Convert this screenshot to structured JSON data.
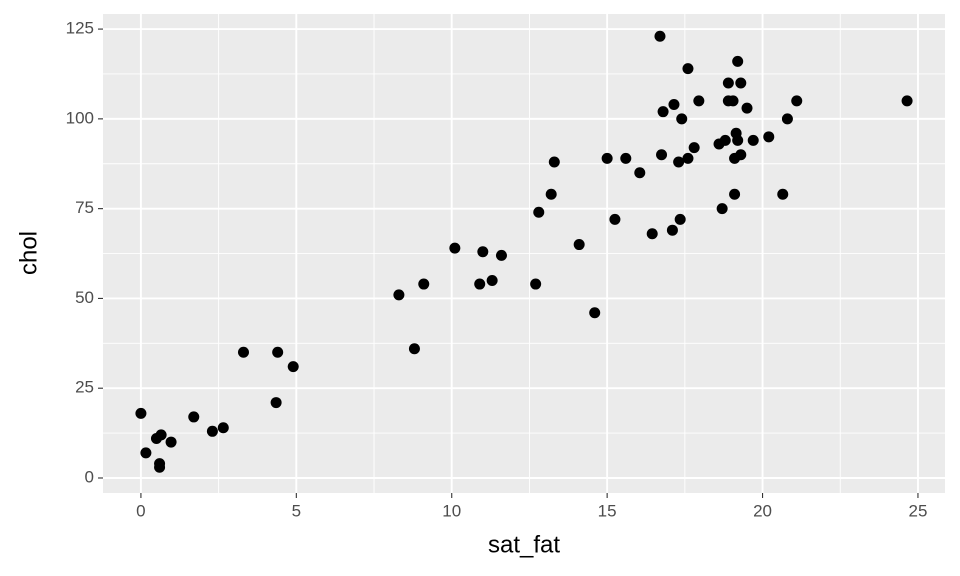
{
  "chart_data": {
    "type": "scatter",
    "x_label": "sat_fat",
    "y_label": "chol",
    "color": "#000000",
    "xlim": [
      -1.22,
      25.87
    ],
    "ylim": [
      -4.18,
      129.2
    ],
    "xticks": [
      0,
      5,
      10,
      15,
      20,
      25
    ],
    "yticks": [
      0,
      25,
      50,
      75,
      100,
      125
    ],
    "grid": true,
    "x": [
      0,
      0.16,
      0.5,
      0.65,
      0.6,
      0.6,
      0.97,
      1.7,
      2.3,
      2.65,
      3.3,
      4.4,
      4.35,
      4.9,
      8.3,
      8.8,
      9.1,
      10.1,
      10.9,
      11.0,
      11.3,
      11.6,
      12.7,
      12.8,
      13.2,
      13.3,
      14.1,
      14.6,
      15.0,
      15.25,
      15.6,
      16.05,
      16.45,
      16.7,
      16.75,
      16.8,
      17.1,
      17.15,
      17.3,
      17.35,
      17.4,
      17.6,
      17.6,
      17.8,
      17.95,
      18.6,
      18.7,
      18.8,
      18.9,
      18.9,
      19.05,
      19.1,
      19.1,
      19.15,
      19.2,
      19.2,
      19.3,
      19.3,
      19.5,
      19.7,
      20.2,
      20.65,
      20.8,
      21.1,
      24.65
    ],
    "values": [
      18,
      7,
      11,
      12,
      4,
      3,
      10,
      17,
      13,
      14,
      35,
      35,
      21,
      31,
      51,
      36,
      54,
      64,
      54,
      63,
      55,
      62,
      54,
      74,
      79,
      88,
      65,
      46,
      89,
      72,
      89,
      85,
      68,
      123,
      90,
      102,
      69,
      104,
      88,
      72,
      100,
      114,
      89,
      92,
      105,
      93,
      75,
      94,
      105,
      110,
      105,
      79,
      89,
      96,
      94,
      116,
      90,
      110,
      103,
      94,
      95,
      79,
      100,
      105,
      105
    ]
  }
}
